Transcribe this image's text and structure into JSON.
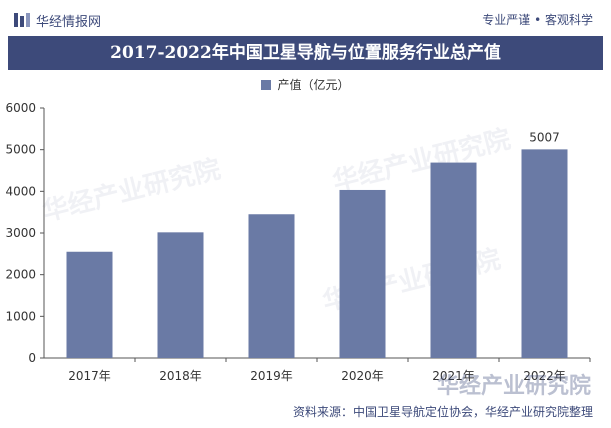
{
  "header": {
    "brand": "华经情报网",
    "slogan": "专业严谨 • 客观科学"
  },
  "chart_data": {
    "type": "bar",
    "title": "2017-2022年中国卫星导航与位置服务行业总产值",
    "categories": [
      "2017年",
      "2018年",
      "2019年",
      "2020年",
      "2021年",
      "2022年"
    ],
    "series": [
      {
        "name": "产值（亿元）",
        "values": [
          2550,
          3016,
          3450,
          4033,
          4690,
          5007
        ]
      }
    ],
    "data_labels": [
      "",
      "",
      "",
      "",
      "",
      "5007"
    ],
    "ylim": [
      0,
      6000
    ],
    "yticks": [
      0,
      1000,
      2000,
      3000,
      4000,
      5000,
      6000
    ],
    "grid": false,
    "legend_position": "top-center",
    "bar_color": "#6a7aa5"
  },
  "footer": {
    "source": "资料来源：中国卫星导航定位协会，华经产业研究院整理",
    "watermark": "华经产业研究院"
  },
  "colors": {
    "brand": "#3d4a7a",
    "bar": "#6a7aa5"
  }
}
